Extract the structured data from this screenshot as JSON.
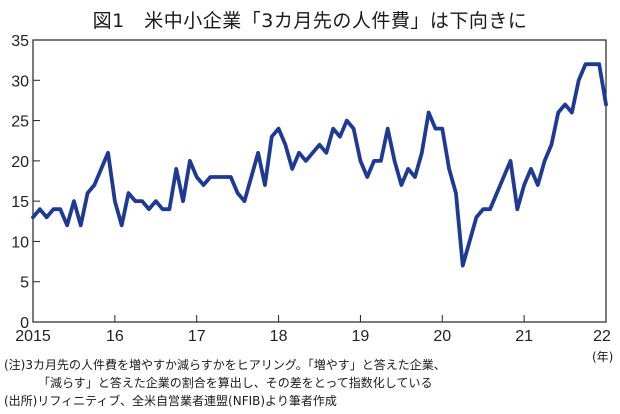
{
  "chart_data": {
    "type": "line",
    "title": "図1　米中小企業「3カ月先の人件費」は下向きに",
    "xlabel": "",
    "ylabel": "",
    "x_unit": "(年)",
    "ylim": [
      0,
      35
    ],
    "yticks": [
      "0",
      "5",
      "10",
      "15",
      "20",
      "25",
      "30",
      "35"
    ],
    "xticks": [
      "2015",
      "16",
      "17",
      "18",
      "19",
      "20",
      "21",
      "22"
    ],
    "xlim": [
      "2015-01",
      "2022-01"
    ],
    "grid": false,
    "legend": "none",
    "line_color": "#1f3a93",
    "series": [
      {
        "x": [
          "2015-01",
          "2015-02",
          "2015-03",
          "2015-04",
          "2015-05",
          "2015-06",
          "2015-07",
          "2015-08",
          "2015-09",
          "2015-10",
          "2015-11",
          "2015-12",
          "2016-01",
          "2016-02",
          "2016-03",
          "2016-04",
          "2016-05",
          "2016-06",
          "2016-07",
          "2016-08",
          "2016-09",
          "2016-10",
          "2016-11",
          "2016-12",
          "2017-01",
          "2017-02",
          "2017-03",
          "2017-04",
          "2017-05",
          "2017-06",
          "2017-07",
          "2017-08",
          "2017-09",
          "2017-10",
          "2017-11",
          "2017-12",
          "2018-01",
          "2018-02",
          "2018-03",
          "2018-04",
          "2018-05",
          "2018-06",
          "2018-07",
          "2018-08",
          "2018-09",
          "2018-10",
          "2018-11",
          "2018-12",
          "2019-01",
          "2019-02",
          "2019-03",
          "2019-04",
          "2019-05",
          "2019-06",
          "2019-07",
          "2019-08",
          "2019-09",
          "2019-10",
          "2019-11",
          "2019-12",
          "2020-01",
          "2020-02",
          "2020-03",
          "2020-04",
          "2020-05",
          "2020-06",
          "2020-07",
          "2020-08",
          "2020-09",
          "2020-10",
          "2020-11",
          "2020-12",
          "2021-01",
          "2021-02",
          "2021-03",
          "2021-04",
          "2021-05",
          "2021-06",
          "2021-07",
          "2021-08",
          "2021-09",
          "2021-10",
          "2021-11",
          "2021-12",
          "2022-01"
        ],
        "values": [
          13,
          14,
          13,
          14,
          14,
          12,
          15,
          12,
          16,
          17,
          19,
          21,
          15,
          12,
          16,
          15,
          15,
          14,
          15,
          14,
          14,
          19,
          15,
          20,
          18,
          17,
          18,
          18,
          18,
          18,
          16,
          15,
          18,
          21,
          17,
          23,
          24,
          22,
          19,
          21,
          20,
          21,
          22,
          21,
          24,
          23,
          25,
          24,
          20,
          18,
          20,
          20,
          24,
          20,
          17,
          19,
          18,
          21,
          26,
          24,
          24,
          19,
          16,
          7,
          10,
          13,
          14,
          14,
          16,
          18,
          20,
          14,
          17,
          19,
          17,
          20,
          22,
          26,
          27,
          26,
          30,
          32,
          32,
          32,
          27
        ]
      }
    ]
  },
  "notes": {
    "line1": "(注)3カ月先の人件費を増やすか減らすかをヒアリング。「増やす」と答えた企業、",
    "line2": "「減らす」と答えた企業の割合を算出し、その差をとって指数化している",
    "line3": "(出所)リフィニティブ、全米自営業者連盟(NFIB)より筆者作成"
  }
}
